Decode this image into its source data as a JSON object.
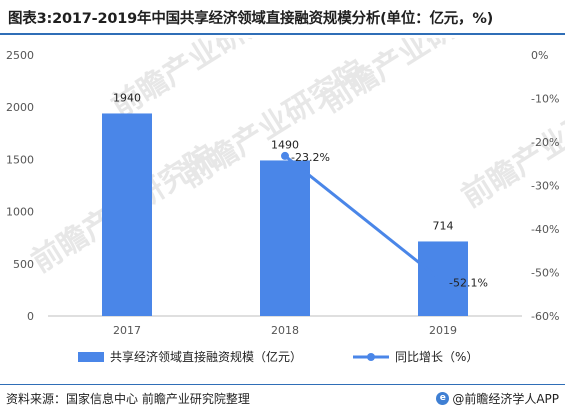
{
  "title": "图表3:2017-2019年中国共享经济领域直接融资规模分析(单位：亿元，%)",
  "source": "资料来源：国家信息中心 前瞻产业研究院整理",
  "brand": "@前瞻经济学人APP",
  "watermark": "前瞻产业研究院",
  "colors": {
    "bar": "#4a86e8",
    "line": "#4a86e8",
    "accent": "#2f6eb7"
  },
  "chart_data": {
    "type": "bar",
    "categories": [
      "2017",
      "2018",
      "2019"
    ],
    "series": [
      {
        "name": "共享经济领域直接融资规模（亿元）",
        "type": "bar",
        "axis": "left",
        "values": [
          1940,
          1490,
          714
        ],
        "labels": [
          "1940",
          "1490",
          "714"
        ]
      },
      {
        "name": "同比增长（%）",
        "type": "line",
        "axis": "right",
        "values": [
          null,
          -23.2,
          -52.1
        ],
        "labels": [
          "",
          "-23.2%",
          "-52.1%"
        ]
      }
    ],
    "y_left": {
      "min": 0,
      "max": 2500,
      "ticks": [
        "0",
        "500",
        "1000",
        "1500",
        "2000",
        "2500"
      ]
    },
    "y_right": {
      "min": -60,
      "max": 0,
      "ticks": [
        "-60%",
        "-50%",
        "-40%",
        "-30%",
        "-20%",
        "-10%",
        "0%"
      ]
    },
    "legend_position": "bottom",
    "grid": false
  }
}
